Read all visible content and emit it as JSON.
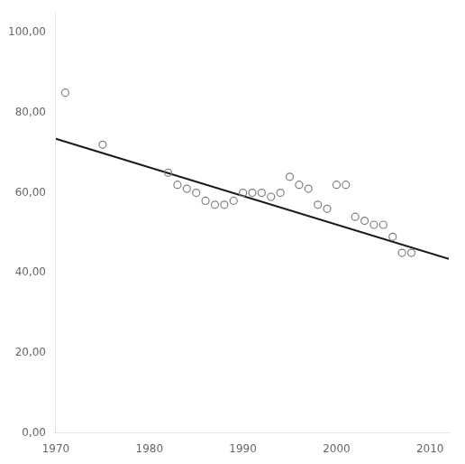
{
  "chart_data": {
    "type": "scatter",
    "xlim": [
      1970,
      2012
    ],
    "ylim": [
      0,
      105
    ],
    "xticks": [
      1970,
      1980,
      1990,
      2000,
      2010
    ],
    "yticks": [
      {
        "value": 0,
        "label": "0,00"
      },
      {
        "value": 20,
        "label": "20,00"
      },
      {
        "value": 40,
        "label": "40,00"
      },
      {
        "value": 60,
        "label": "60,00"
      },
      {
        "value": 80,
        "label": "80,00"
      },
      {
        "value": 100,
        "label": "100,00"
      }
    ],
    "grid": false,
    "series": [
      {
        "type": "scatter",
        "marker": "circle",
        "color": "#808080",
        "x": [
          1971,
          1975,
          1982,
          1983,
          1984,
          1985,
          1986,
          1987,
          1988,
          1989,
          1990,
          1991,
          1992,
          1993,
          1994,
          1995,
          1996,
          1997,
          1998,
          1999,
          2000,
          2001,
          2002,
          2003,
          2004,
          2005,
          2006,
          2007,
          2008
        ],
        "values": [
          85,
          72,
          65,
          62,
          61,
          60,
          58,
          57,
          57,
          58,
          60,
          60,
          60,
          59,
          60,
          64,
          62,
          61,
          57,
          56,
          62,
          62,
          54,
          53,
          52,
          52,
          49,
          45,
          45
        ]
      },
      {
        "type": "line",
        "line_style": "solid",
        "color": "#1a1a1a",
        "x": [
          1970,
          2012
        ],
        "values": [
          73.5,
          43.5
        ]
      }
    ]
  }
}
